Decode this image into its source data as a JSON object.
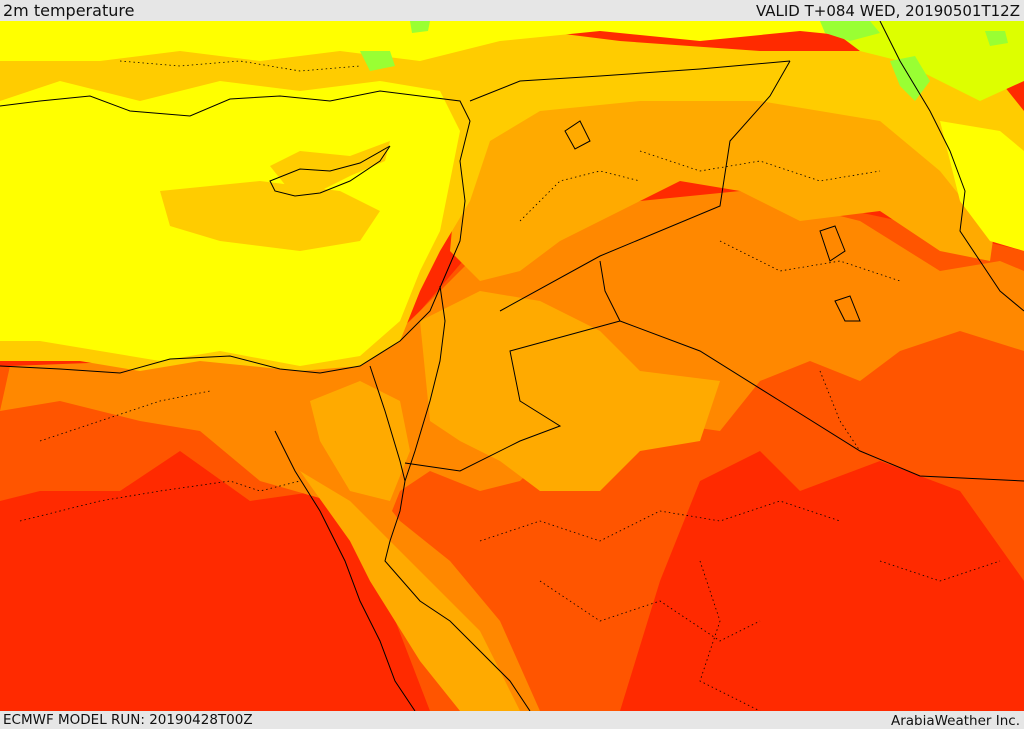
{
  "header": {
    "title": "2m temperature",
    "valid": "VALID T+084 WED, 20190501T12Z"
  },
  "footer": {
    "model_run": "ECMWF MODEL RUN: 20190428T00Z",
    "credit": "ArabiaWeather Inc."
  },
  "colors": {
    "band_lightgreen": "#99ff33",
    "band_yellowgreen": "#ddff00",
    "band_yellow": "#ffff00",
    "band_gold": "#ffcc00",
    "band_amber": "#ffaa00",
    "band_orange": "#ff8800",
    "band_redorange": "#ff5500",
    "band_red": "#ff2a00",
    "borders": "#000000"
  }
}
